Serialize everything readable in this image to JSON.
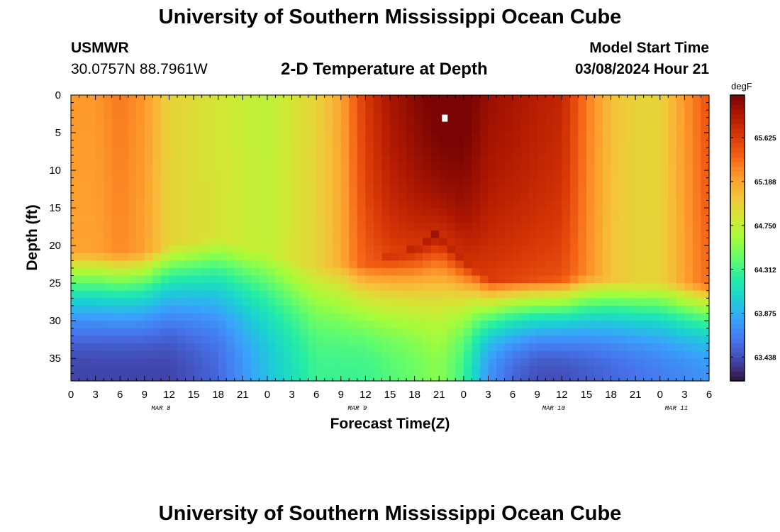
{
  "page": {
    "title": "University of Southern Mississippi Ocean Cube",
    "footer_title": "University of Southern Mississippi Ocean Cube",
    "station_id": "USMWR",
    "coordinates": "30.0757N  88.7961W",
    "model_start_label": "Model Start Time",
    "model_start_value": "03/08/2024 Hour 21"
  },
  "chart_data": {
    "type": "heatmap",
    "title": "2-D Temperature at Depth",
    "xlabel": "Forecast Time(Z)",
    "ylabel": "Depth (ft)",
    "colorbar_label": "degF",
    "x_hours_range": [
      0,
      78
    ],
    "x_tick_labels": [
      "0",
      "3",
      "6",
      "9",
      "12",
      "15",
      "18",
      "21",
      "0",
      "3",
      "6",
      "9",
      "12",
      "15",
      "18",
      "21",
      "0",
      "3",
      "6",
      "9",
      "12",
      "15",
      "18",
      "21",
      "0",
      "3",
      "6"
    ],
    "date_labels": [
      {
        "text": "MAR 8",
        "hour": 11
      },
      {
        "text": "MAR 9",
        "hour": 35
      },
      {
        "text": "MAR 10",
        "hour": 59
      },
      {
        "text": "MAR 11",
        "hour": 74
      }
    ],
    "ylim": [
      38,
      0
    ],
    "y_ticks": [
      0,
      5,
      10,
      15,
      20,
      25,
      30,
      35
    ],
    "colorbar_range": [
      63.2,
      66.05
    ],
    "colorbar_ticks": [
      "65.625",
      "65.188",
      "64.750",
      "64.312",
      "63.875",
      "63.438"
    ],
    "colormap": [
      "#30123b",
      "#4145ab",
      "#4675ed",
      "#39a2fc",
      "#1bcfd4",
      "#24eca6",
      "#61fc6c",
      "#a4fc3b",
      "#d1e834",
      "#f3c63a",
      "#fe9b2d",
      "#f36315",
      "#d93806",
      "#b11901",
      "#7a0403"
    ],
    "surface_temp_keyframes": [
      {
        "hour": 0,
        "temp": 65.2
      },
      {
        "hour": 3,
        "temp": 65.2
      },
      {
        "hour": 6,
        "temp": 65.3
      },
      {
        "hour": 9,
        "temp": 65.2
      },
      {
        "hour": 12,
        "temp": 64.95
      },
      {
        "hour": 15,
        "temp": 64.9
      },
      {
        "hour": 18,
        "temp": 64.85
      },
      {
        "hour": 21,
        "temp": 64.8
      },
      {
        "hour": 24,
        "temp": 64.75
      },
      {
        "hour": 27,
        "temp": 64.85
      },
      {
        "hour": 30,
        "temp": 64.95
      },
      {
        "hour": 33,
        "temp": 65.15
      },
      {
        "hour": 36,
        "temp": 65.55
      },
      {
        "hour": 39,
        "temp": 65.75
      },
      {
        "hour": 42,
        "temp": 65.85
      },
      {
        "hour": 45,
        "temp": 65.95
      },
      {
        "hour": 48,
        "temp": 65.95
      },
      {
        "hour": 51,
        "temp": 65.8
      },
      {
        "hour": 54,
        "temp": 65.75
      },
      {
        "hour": 57,
        "temp": 65.7
      },
      {
        "hour": 60,
        "temp": 65.65
      },
      {
        "hour": 63,
        "temp": 65.3
      },
      {
        "hour": 66,
        "temp": 65.05
      },
      {
        "hour": 69,
        "temp": 64.95
      },
      {
        "hour": 72,
        "temp": 64.95
      },
      {
        "hour": 75,
        "temp": 65.2
      },
      {
        "hour": 78,
        "temp": 65.45
      }
    ],
    "mixed_layer_depth_keyframes": [
      {
        "hour": 0,
        "depth": 21
      },
      {
        "hour": 6,
        "depth": 21
      },
      {
        "hour": 9,
        "depth": 21
      },
      {
        "hour": 12,
        "depth": 20
      },
      {
        "hour": 18,
        "depth": 19
      },
      {
        "hour": 24,
        "depth": 21
      },
      {
        "hour": 30,
        "depth": 23
      },
      {
        "hour": 36,
        "depth": 22
      },
      {
        "hour": 42,
        "depth": 20
      },
      {
        "hour": 45,
        "depth": 18
      },
      {
        "hour": 48,
        "depth": 21
      },
      {
        "hour": 51,
        "depth": 24
      },
      {
        "hour": 57,
        "depth": 24
      },
      {
        "hour": 63,
        "depth": 24
      },
      {
        "hour": 69,
        "depth": 25
      },
      {
        "hour": 78,
        "depth": 25
      }
    ],
    "bottom_temp_keyframes": [
      {
        "hour": 0,
        "temp": 63.4
      },
      {
        "hour": 6,
        "temp": 63.4
      },
      {
        "hour": 12,
        "temp": 63.4
      },
      {
        "hour": 18,
        "temp": 63.55
      },
      {
        "hour": 24,
        "temp": 63.95
      },
      {
        "hour": 30,
        "temp": 64.3
      },
      {
        "hour": 36,
        "temp": 64.3
      },
      {
        "hour": 42,
        "temp": 64.45
      },
      {
        "hour": 45,
        "temp": 64.55
      },
      {
        "hour": 48,
        "temp": 64.3
      },
      {
        "hour": 51,
        "temp": 63.75
      },
      {
        "hour": 54,
        "temp": 63.55
      },
      {
        "hour": 57,
        "temp": 63.45
      },
      {
        "hour": 60,
        "temp": 63.45
      },
      {
        "hour": 66,
        "temp": 63.55
      },
      {
        "hour": 72,
        "temp": 63.65
      },
      {
        "hour": 78,
        "temp": 63.75
      }
    ]
  }
}
